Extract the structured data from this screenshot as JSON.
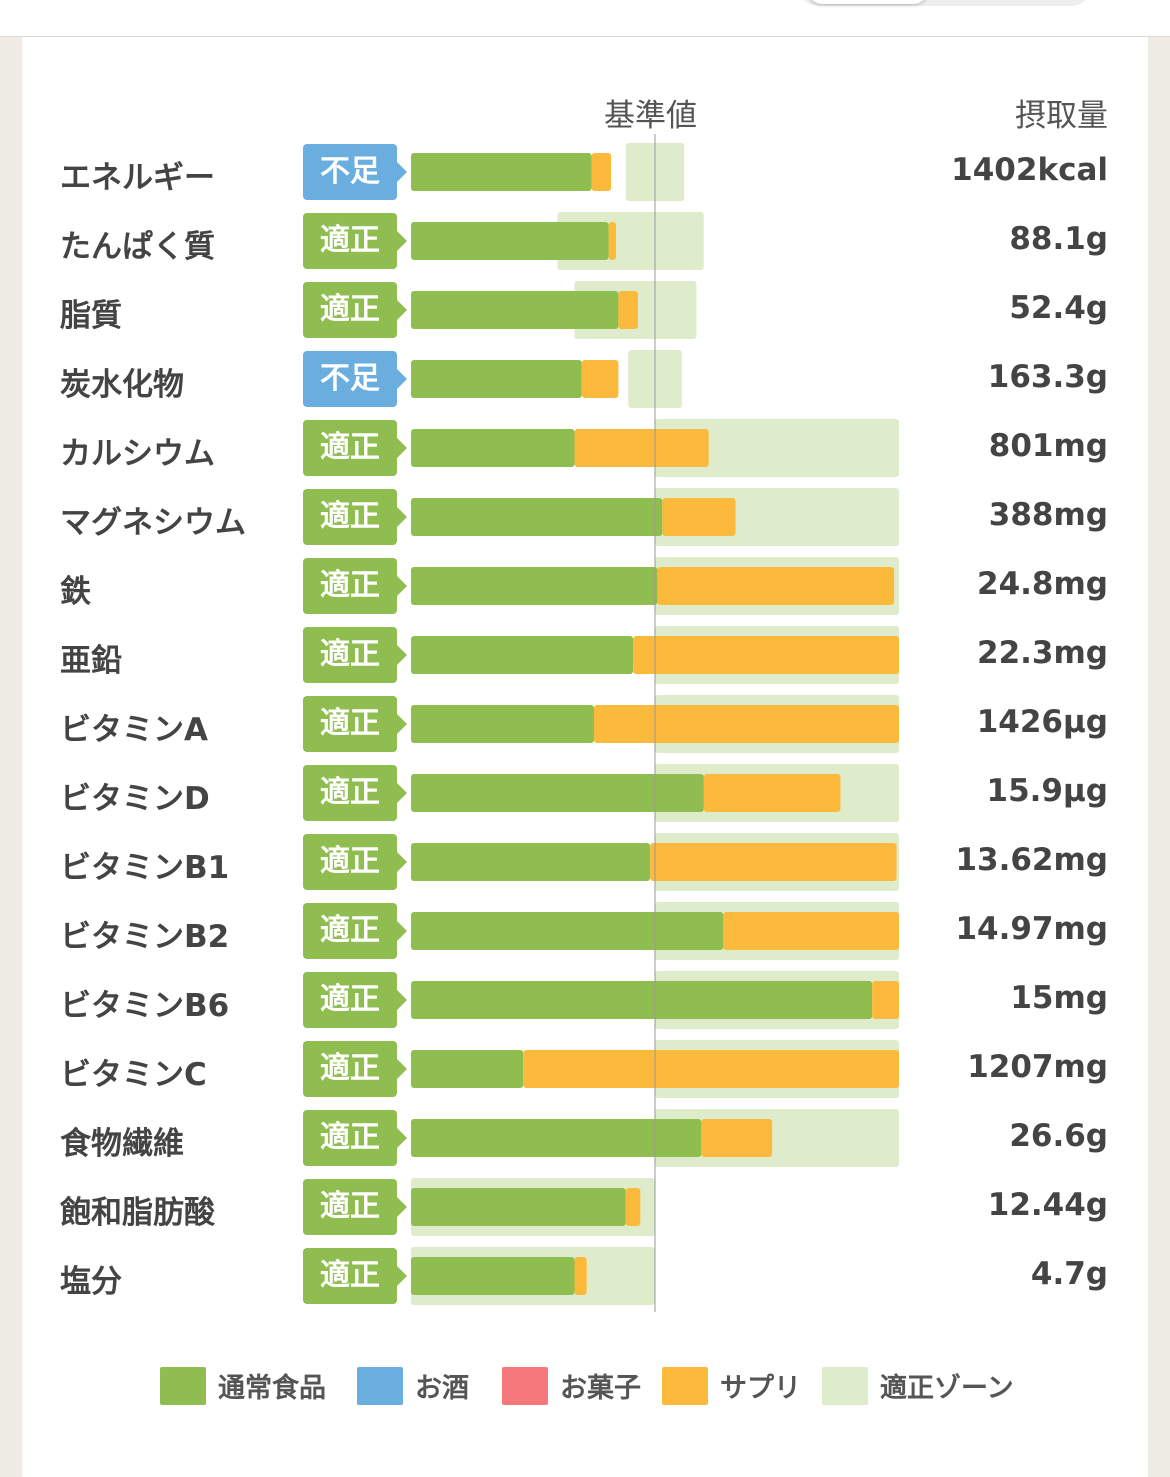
{
  "colors": {
    "normal": "#8fbd4f",
    "alcohol": "#6aaee0",
    "snack": "#f7787a",
    "supplement": "#fbba3c",
    "zone": "#dfeccc",
    "badge_adequate": "#8fbd4f",
    "badge_insufficient": "#6aaee0"
  },
  "header": {
    "reference_label": "基準値",
    "intake_label": "摂取量"
  },
  "chart_data": {
    "type": "bar",
    "stacked": true,
    "orientation": "horizontal",
    "reference_line": 1.0,
    "xlim": [
      0,
      2.0
    ],
    "grid": false,
    "legend_position": "bottom",
    "categories": [
      "エネルギー",
      "たんぱく質",
      "脂質",
      "炭水化物",
      "カルシウム",
      "マグネシウム",
      "鉄",
      "亜鉛",
      "ビタミンA",
      "ビタミンD",
      "ビタミンB1",
      "ビタミンB2",
      "ビタミンB6",
      "ビタミンC",
      "食物繊維",
      "飽和脂肪酸",
      "塩分"
    ],
    "series": [
      {
        "name": "通常食品",
        "values": [
          0.74,
          0.81,
          0.85,
          0.7,
          0.67,
          1.03,
          1.01,
          0.91,
          0.75,
          1.2,
          0.98,
          1.28,
          1.89,
          0.46,
          1.19,
          0.88,
          0.67
        ]
      },
      {
        "name": "お酒",
        "values": [
          0,
          0,
          0,
          0,
          0,
          0,
          0,
          0,
          0,
          0,
          0,
          0,
          0,
          0,
          0,
          0,
          0
        ]
      },
      {
        "name": "お菓子",
        "values": [
          0,
          0,
          0,
          0,
          0,
          0,
          0,
          0,
          0,
          0,
          0,
          0,
          0,
          0,
          0,
          0,
          0
        ]
      },
      {
        "name": "サプリ",
        "values": [
          0.08,
          0.03,
          0.08,
          0.15,
          0.55,
          0.3,
          0.97,
          1.09,
          1.25,
          0.56,
          1.01,
          0.72,
          0.11,
          1.54,
          0.29,
          0.06,
          0.05
        ]
      }
    ],
    "zones": [
      [
        0.88,
        1.12
      ],
      [
        0.6,
        1.2
      ],
      [
        0.67,
        1.17
      ],
      [
        0.89,
        1.11
      ],
      [
        1.0,
        2.0
      ],
      [
        1.0,
        2.0
      ],
      [
        1.0,
        2.0
      ],
      [
        1.0,
        2.0
      ],
      [
        1.0,
        2.0
      ],
      [
        1.0,
        2.0
      ],
      [
        1.0,
        2.0
      ],
      [
        1.0,
        2.0
      ],
      [
        1.0,
        2.0
      ],
      [
        1.0,
        2.0
      ],
      [
        1.0,
        2.0
      ],
      [
        0,
        1.0
      ],
      [
        0,
        1.0
      ]
    ],
    "statuses": [
      "不足",
      "適正",
      "適正",
      "不足",
      "適正",
      "適正",
      "適正",
      "適正",
      "適正",
      "適正",
      "適正",
      "適正",
      "適正",
      "適正",
      "適正",
      "適正",
      "適正"
    ],
    "intakes": [
      "1402kcal",
      "88.1g",
      "52.4g",
      "163.3g",
      "801mg",
      "388mg",
      "24.8mg",
      "22.3mg",
      "1426µg",
      "15.9µg",
      "13.62mg",
      "14.97mg",
      "15mg",
      "1207mg",
      "26.6g",
      "12.44g",
      "4.7g"
    ]
  },
  "legend": [
    {
      "label": "通常食品",
      "color_key": "normal"
    },
    {
      "label": "お酒",
      "color_key": "alcohol"
    },
    {
      "label": "お菓子",
      "color_key": "snack"
    },
    {
      "label": "サプリ",
      "color_key": "supplement"
    },
    {
      "label": "適正ゾーン",
      "color_key": "zone"
    }
  ]
}
